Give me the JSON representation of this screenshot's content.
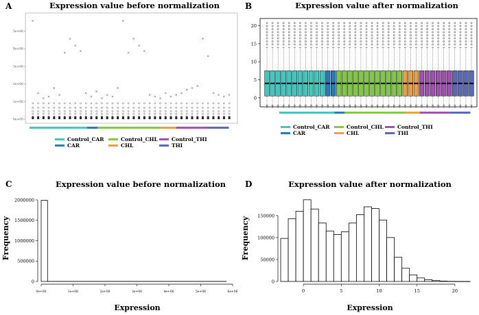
{
  "group_colors": {
    "Control_CAR": "#40c8c0",
    "CAR": "#2a7ab8",
    "Control_CHL": "#80c845",
    "CHL": "#e8a040",
    "Control_THI": "#a050b0",
    "THI": "#5a68b8"
  },
  "legend": [
    "Control_CAR",
    "CAR",
    "Control_CHL",
    "CHL",
    "Control_THI",
    "THI"
  ],
  "sample_groups": [
    "Control_CAR",
    "Control_CAR",
    "Control_CAR",
    "Control_CAR",
    "Control_CAR",
    "Control_CAR",
    "Control_CAR",
    "Control_CAR",
    "Control_CAR",
    "Control_CAR",
    "Control_CAR",
    "CAR",
    "CAR",
    "Control_CHL",
    "Control_CHL",
    "Control_CHL",
    "Control_CHL",
    "Control_CHL",
    "Control_CHL",
    "Control_CHL",
    "Control_CHL",
    "Control_CHL",
    "Control_CHL",
    "Control_CHL",
    "Control_CHL",
    "CHL",
    "CHL",
    "CHL",
    "Control_THI",
    "Control_THI",
    "Control_THI",
    "Control_THI",
    "Control_THI",
    "Control_THI",
    "THI",
    "THI",
    "THI",
    "THI"
  ],
  "panels": {
    "A": {
      "letter": "A",
      "title": "Expression value before normalization"
    },
    "B": {
      "letter": "B",
      "title": "Expression value after normalization"
    },
    "C": {
      "letter": "C",
      "title": "Expression value before normalization"
    },
    "D": {
      "letter": "D",
      "title": "Expression value after normalization"
    }
  },
  "chart_data": [
    {
      "panel": "A",
      "type": "box",
      "title": "Expression value before normalization",
      "y_ticks": [
        "0e+00",
        "1e+06",
        "2e+06",
        "3e+06",
        "4e+06",
        "5e+06"
      ],
      "ylim": [
        0,
        5800000
      ],
      "n_samples": 38,
      "outlier_max": [
        5600000,
        1500000,
        1200000,
        1300000,
        1800000,
        1400000,
        3800000,
        4600000,
        4200000,
        3900000,
        1500000,
        1300000,
        1600000,
        1200000,
        1400000,
        1300000,
        1800000,
        5600000,
        3800000,
        4600000,
        4200000,
        3900000,
        1400000,
        1300000,
        1200000,
        1500000,
        1300000,
        1400000,
        1500000,
        1700000,
        1800000,
        1900000,
        4600000,
        3600000,
        1500000,
        1400000,
        1300000,
        1400000
      ]
    },
    {
      "panel": "B",
      "type": "box",
      "title": "Expression value after normalization",
      "y_ticks": [
        "0",
        "5",
        "10",
        "15",
        "20"
      ],
      "ylim": [
        -2.5,
        22
      ],
      "n_samples": 38,
      "q1": 0.5,
      "median": 4,
      "q3": 7.5,
      "whisker_low": -2,
      "whisker_high": 14
    },
    {
      "panel": "C",
      "type": "bar",
      "title": "Expression value before normalization",
      "xlabel": "Expression",
      "ylabel": "Frequency",
      "x_ticks": [
        "0e+00",
        "1e+06",
        "2e+06",
        "3e+06",
        "4e+06",
        "5e+06",
        "6e+06"
      ],
      "y_ticks": [
        "0",
        "500000",
        "1000000",
        "1500000",
        "2000000"
      ],
      "xlim": [
        0,
        6000000
      ],
      "ylim": [
        0,
        2100000
      ],
      "bins": [
        [
          0,
          200000
        ],
        [
          200000,
          5800000
        ]
      ],
      "values": [
        1990000,
        2000
      ]
    },
    {
      "panel": "D",
      "type": "bar",
      "title": "Expression value after normalization",
      "xlabel": "Expression",
      "ylabel": "Frequency",
      "x_ticks": [
        "0",
        "5",
        "10",
        "15",
        "20"
      ],
      "y_ticks": [
        "0",
        "50000",
        "100000",
        "150000"
      ],
      "xlim": [
        -3,
        22
      ],
      "ylim": [
        0,
        195000
      ],
      "bin_start": -3,
      "bin_width": 1,
      "values": [
        98000,
        143000,
        160000,
        186000,
        165000,
        133000,
        115000,
        107000,
        113000,
        133000,
        152000,
        170000,
        166000,
        140000,
        100000,
        55000,
        30000,
        15000,
        8000,
        4000,
        2000,
        800,
        300,
        100,
        50
      ]
    }
  ]
}
